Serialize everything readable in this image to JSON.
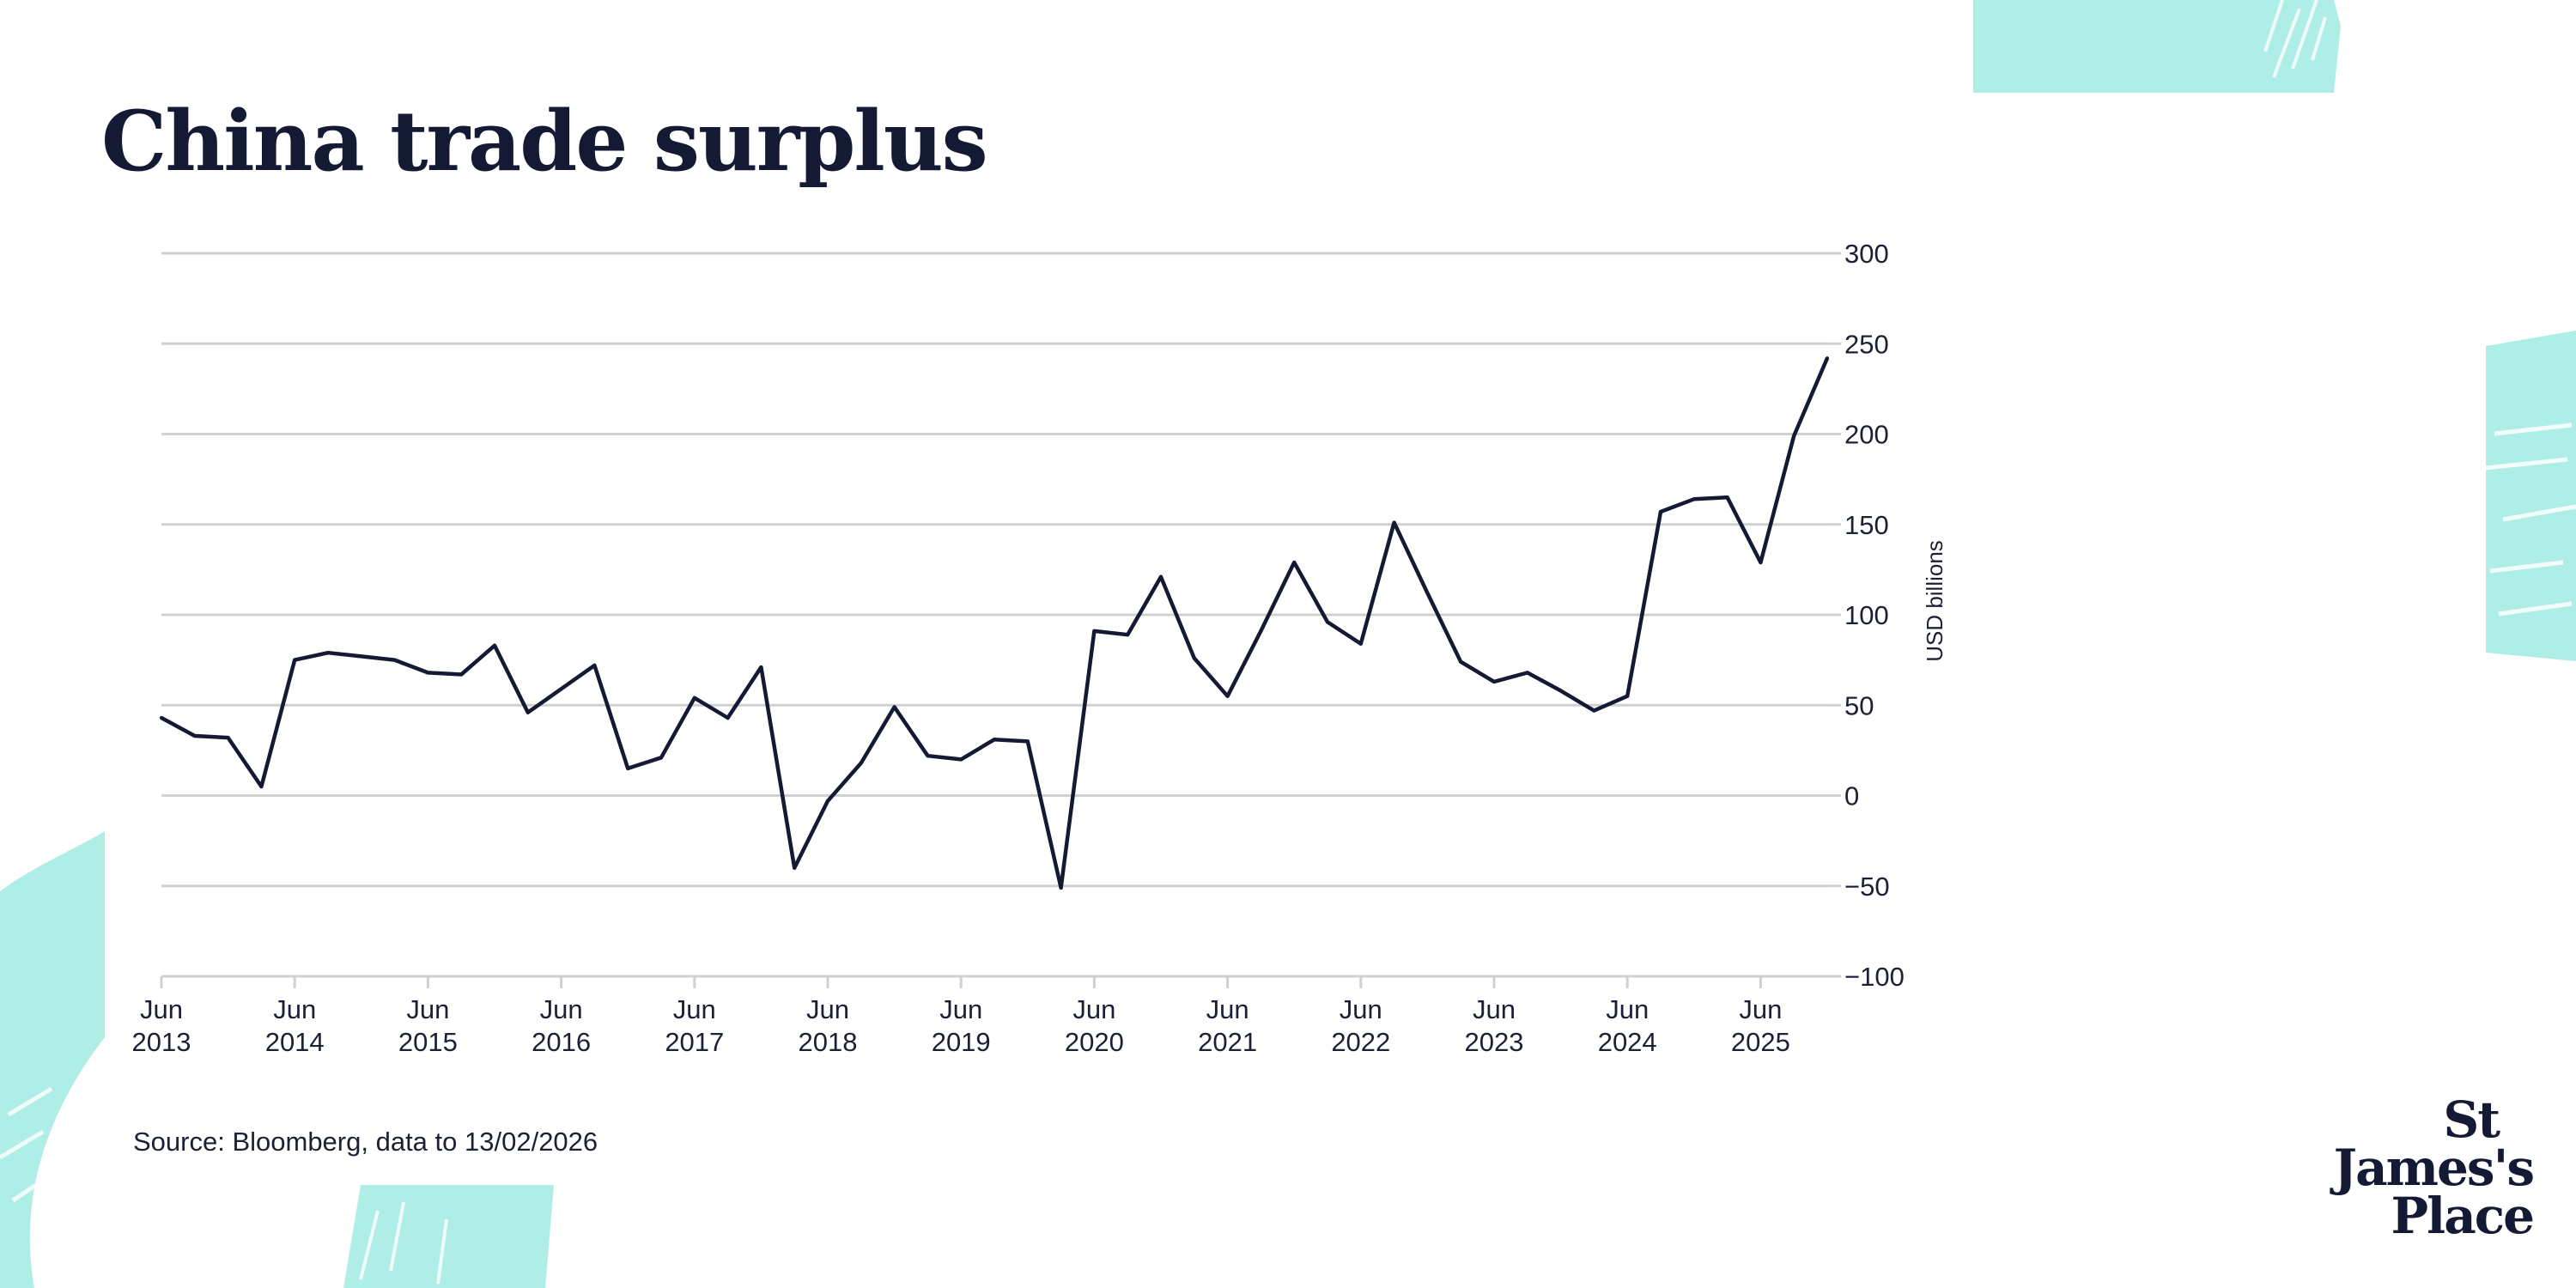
{
  "title": "China trade surplus",
  "source": "Source: Bloomberg, data to 13/02/2026",
  "logo": {
    "line1": "St",
    "line2": "James's",
    "line3": "Place"
  },
  "colors": {
    "accent": "#aeeee6",
    "line": "#141a33",
    "grid": "#d0d0d0"
  },
  "chart_data": {
    "type": "line",
    "title": "China trade surplus",
    "xlabel": "",
    "ylabel": "USD billions",
    "ylim": [
      -100,
      300
    ],
    "ytick_values": [
      -100,
      -50,
      0,
      50,
      100,
      150,
      200,
      250,
      300
    ],
    "yticks": [
      "−100",
      "−50",
      "0",
      "50",
      "100",
      "150",
      "200",
      "250",
      "300"
    ],
    "grid": true,
    "x_start": "Jun 2013",
    "x_step": "quarterly",
    "xticks": [
      {
        "month": "Jun",
        "year": "2013",
        "index": 0
      },
      {
        "month": "Jun",
        "year": "2014",
        "index": 4
      },
      {
        "month": "Jun",
        "year": "2015",
        "index": 8
      },
      {
        "month": "Jun",
        "year": "2016",
        "index": 12
      },
      {
        "month": "Jun",
        "year": "2017",
        "index": 16
      },
      {
        "month": "Jun",
        "year": "2018",
        "index": 20
      },
      {
        "month": "Jun",
        "year": "2019",
        "index": 24
      },
      {
        "month": "Jun",
        "year": "2020",
        "index": 28
      },
      {
        "month": "Jun",
        "year": "2021",
        "index": 32
      },
      {
        "month": "Jun",
        "year": "2022",
        "index": 36
      },
      {
        "month": "Jun",
        "year": "2023",
        "index": 40
      },
      {
        "month": "Jun",
        "year": "2024",
        "index": 44
      },
      {
        "month": "Jun",
        "year": "2025",
        "index": 48
      }
    ],
    "series": [
      {
        "name": "China trade surplus",
        "values": [
          43,
          33,
          32,
          5,
          75,
          79,
          77,
          75,
          68,
          67,
          83,
          46,
          59,
          72,
          15,
          21,
          54,
          43,
          71,
          -40,
          -3,
          18,
          49,
          22,
          20,
          31,
          30,
          -51,
          91,
          89,
          121,
          76,
          55,
          91,
          129,
          96,
          84,
          151,
          112,
          74,
          63,
          68,
          58,
          47,
          55,
          157,
          164,
          165,
          129,
          199,
          242
        ]
      }
    ]
  }
}
